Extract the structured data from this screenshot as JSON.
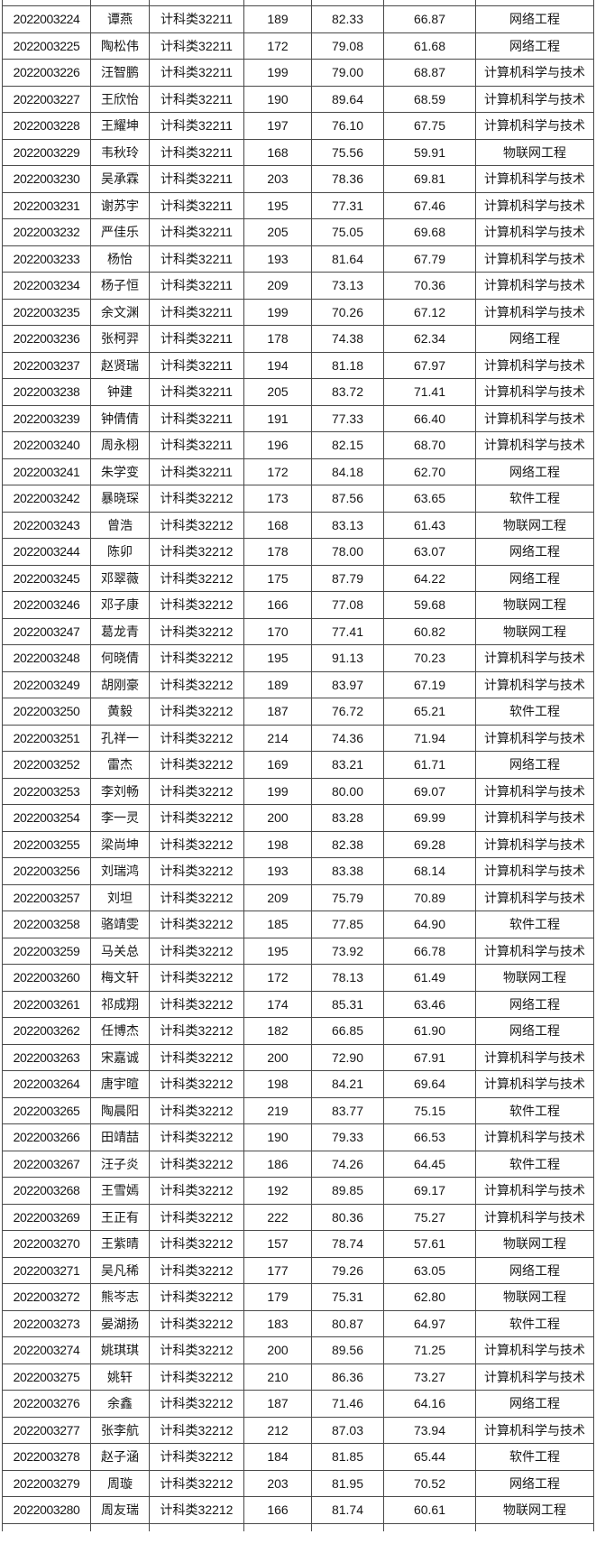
{
  "page": {
    "background_color": "#ffffff",
    "grid_border_color": "#4a4a4a",
    "text_color": "#161616"
  },
  "table": {
    "columns": [
      {
        "key": "student-id"
      },
      {
        "key": "name"
      },
      {
        "key": "class"
      },
      {
        "key": "total-score"
      },
      {
        "key": "score-1"
      },
      {
        "key": "score-2"
      },
      {
        "key": "major"
      }
    ],
    "rows": [
      [
        "2022003224",
        "谭燕",
        "计科类32211",
        "189",
        "82.33",
        "66.87",
        "网络工程"
      ],
      [
        "2022003225",
        "陶松伟",
        "计科类32211",
        "172",
        "79.08",
        "61.68",
        "网络工程"
      ],
      [
        "2022003226",
        "汪智鹏",
        "计科类32211",
        "199",
        "79.00",
        "68.87",
        "计算机科学与技术"
      ],
      [
        "2022003227",
        "王欣怡",
        "计科类32211",
        "190",
        "89.64",
        "68.59",
        "计算机科学与技术"
      ],
      [
        "2022003228",
        "王耀坤",
        "计科类32211",
        "197",
        "76.10",
        "67.75",
        "计算机科学与技术"
      ],
      [
        "2022003229",
        "韦秋玲",
        "计科类32211",
        "168",
        "75.56",
        "59.91",
        "物联网工程"
      ],
      [
        "2022003230",
        "吴承霖",
        "计科类32211",
        "203",
        "78.36",
        "69.81",
        "计算机科学与技术"
      ],
      [
        "2022003231",
        "谢苏宇",
        "计科类32211",
        "195",
        "77.31",
        "67.46",
        "计算机科学与技术"
      ],
      [
        "2022003232",
        "严佳乐",
        "计科类32211",
        "205",
        "75.05",
        "69.68",
        "计算机科学与技术"
      ],
      [
        "2022003233",
        "杨怡",
        "计科类32211",
        "193",
        "81.64",
        "67.79",
        "计算机科学与技术"
      ],
      [
        "2022003234",
        "杨子恒",
        "计科类32211",
        "209",
        "73.13",
        "70.36",
        "计算机科学与技术"
      ],
      [
        "2022003235",
        "余文渊",
        "计科类32211",
        "199",
        "70.26",
        "67.12",
        "计算机科学与技术"
      ],
      [
        "2022003236",
        "张柯羿",
        "计科类32211",
        "178",
        "74.38",
        "62.34",
        "网络工程"
      ],
      [
        "2022003237",
        "赵贤瑞",
        "计科类32211",
        "194",
        "81.18",
        "67.97",
        "计算机科学与技术"
      ],
      [
        "2022003238",
        "钟建",
        "计科类32211",
        "205",
        "83.72",
        "71.41",
        "计算机科学与技术"
      ],
      [
        "2022003239",
        "钟倩倩",
        "计科类32211",
        "191",
        "77.33",
        "66.40",
        "计算机科学与技术"
      ],
      [
        "2022003240",
        "周永栩",
        "计科类32211",
        "196",
        "82.15",
        "68.70",
        "计算机科学与技术"
      ],
      [
        "2022003241",
        "朱学变",
        "计科类32211",
        "172",
        "84.18",
        "62.70",
        "网络工程"
      ],
      [
        "2022003242",
        "暴晓琛",
        "计科类32212",
        "173",
        "87.56",
        "63.65",
        "软件工程"
      ],
      [
        "2022003243",
        "曾浩",
        "计科类32212",
        "168",
        "83.13",
        "61.43",
        "物联网工程"
      ],
      [
        "2022003244",
        "陈卯",
        "计科类32212",
        "178",
        "78.00",
        "63.07",
        "网络工程"
      ],
      [
        "2022003245",
        "邓翠薇",
        "计科类32212",
        "175",
        "87.79",
        "64.22",
        "网络工程"
      ],
      [
        "2022003246",
        "邓子康",
        "计科类32212",
        "166",
        "77.08",
        "59.68",
        "物联网工程"
      ],
      [
        "2022003247",
        "葛龙青",
        "计科类32212",
        "170",
        "77.41",
        "60.82",
        "物联网工程"
      ],
      [
        "2022003248",
        "何晓倩",
        "计科类32212",
        "195",
        "91.13",
        "70.23",
        "计算机科学与技术"
      ],
      [
        "2022003249",
        "胡刚豪",
        "计科类32212",
        "189",
        "83.97",
        "67.19",
        "计算机科学与技术"
      ],
      [
        "2022003250",
        "黄毅",
        "计科类32212",
        "187",
        "76.72",
        "65.21",
        "软件工程"
      ],
      [
        "2022003251",
        "孔祥一",
        "计科类32212",
        "214",
        "74.36",
        "71.94",
        "计算机科学与技术"
      ],
      [
        "2022003252",
        "雷杰",
        "计科类32212",
        "169",
        "83.21",
        "61.71",
        "网络工程"
      ],
      [
        "2022003253",
        "李刘畅",
        "计科类32212",
        "199",
        "80.00",
        "69.07",
        "计算机科学与技术"
      ],
      [
        "2022003254",
        "李一灵",
        "计科类32212",
        "200",
        "83.28",
        "69.99",
        "计算机科学与技术"
      ],
      [
        "2022003255",
        "梁尚坤",
        "计科类32212",
        "198",
        "82.38",
        "69.28",
        "计算机科学与技术"
      ],
      [
        "2022003256",
        "刘瑞鸿",
        "计科类32212",
        "193",
        "83.38",
        "68.14",
        "计算机科学与技术"
      ],
      [
        "2022003257",
        "刘坦",
        "计科类32212",
        "209",
        "75.79",
        "70.89",
        "计算机科学与技术"
      ],
      [
        "2022003258",
        "骆靖雯",
        "计科类32212",
        "185",
        "77.85",
        "64.90",
        "软件工程"
      ],
      [
        "2022003259",
        "马关总",
        "计科类32212",
        "195",
        "73.92",
        "66.78",
        "计算机科学与技术"
      ],
      [
        "2022003260",
        "梅文轩",
        "计科类32212",
        "172",
        "78.13",
        "61.49",
        "物联网工程"
      ],
      [
        "2022003261",
        "祁成翔",
        "计科类32212",
        "174",
        "85.31",
        "63.46",
        "网络工程"
      ],
      [
        "2022003262",
        "任博杰",
        "计科类32212",
        "182",
        "66.85",
        "61.90",
        "网络工程"
      ],
      [
        "2022003263",
        "宋嘉诚",
        "计科类32212",
        "200",
        "72.90",
        "67.91",
        "计算机科学与技术"
      ],
      [
        "2022003264",
        "唐宇暄",
        "计科类32212",
        "198",
        "84.21",
        "69.64",
        "计算机科学与技术"
      ],
      [
        "2022003265",
        "陶晨阳",
        "计科类32212",
        "219",
        "83.77",
        "75.15",
        "软件工程"
      ],
      [
        "2022003266",
        "田靖喆",
        "计科类32212",
        "190",
        "79.33",
        "66.53",
        "计算机科学与技术"
      ],
      [
        "2022003267",
        "汪子炎",
        "计科类32212",
        "186",
        "74.26",
        "64.45",
        "软件工程"
      ],
      [
        "2022003268",
        "王雪嫣",
        "计科类32212",
        "192",
        "89.85",
        "69.17",
        "计算机科学与技术"
      ],
      [
        "2022003269",
        "王正有",
        "计科类32212",
        "222",
        "80.36",
        "75.27",
        "计算机科学与技术"
      ],
      [
        "2022003270",
        "王紫晴",
        "计科类32212",
        "157",
        "78.74",
        "57.61",
        "物联网工程"
      ],
      [
        "2022003271",
        "吴凡稀",
        "计科类32212",
        "177",
        "79.26",
        "63.05",
        "网络工程"
      ],
      [
        "2022003272",
        "熊岑志",
        "计科类32212",
        "179",
        "75.31",
        "62.80",
        "物联网工程"
      ],
      [
        "2022003273",
        "晏湖扬",
        "计科类32212",
        "183",
        "80.87",
        "64.97",
        "软件工程"
      ],
      [
        "2022003274",
        "姚琪琪",
        "计科类32212",
        "200",
        "89.56",
        "71.25",
        "计算机科学与技术"
      ],
      [
        "2022003275",
        "姚轩",
        "计科类32212",
        "210",
        "86.36",
        "73.27",
        "计算机科学与技术"
      ],
      [
        "2022003276",
        "余鑫",
        "计科类32212",
        "187",
        "71.46",
        "64.16",
        "网络工程"
      ],
      [
        "2022003277",
        "张李航",
        "计科类32212",
        "212",
        "87.03",
        "73.94",
        "计算机科学与技术"
      ],
      [
        "2022003278",
        "赵子涵",
        "计科类32212",
        "184",
        "81.85",
        "65.44",
        "软件工程"
      ],
      [
        "2022003279",
        "周璇",
        "计科类32212",
        "203",
        "81.95",
        "70.52",
        "网络工程"
      ],
      [
        "2022003280",
        "周友瑞",
        "计科类32212",
        "166",
        "81.74",
        "60.61",
        "物联网工程"
      ]
    ]
  }
}
